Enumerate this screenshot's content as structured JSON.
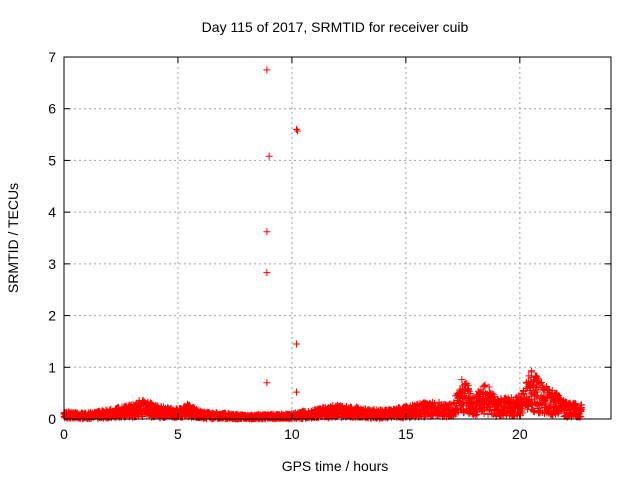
{
  "chart_data": {
    "type": "scatter",
    "title": "Day 115 of 2017, SRMTID for receiver cuib",
    "xlabel": "GPS time / hours",
    "ylabel": "SRMTID / TECUs",
    "xlim": [
      0,
      24
    ],
    "ylim": [
      0,
      7
    ],
    "xticks": [
      "0",
      "5",
      "10",
      "15",
      "20"
    ],
    "yticks": [
      "0",
      "1",
      "2",
      "3",
      "4",
      "5",
      "6",
      "7"
    ],
    "grid": true,
    "marker": "plus",
    "color": "#ff0000",
    "outliers": [
      {
        "x": 8.9,
        "y": 6.75
      },
      {
        "x": 10.2,
        "y": 5.6
      },
      {
        "x": 10.25,
        "y": 5.57
      },
      {
        "x": 9.0,
        "y": 5.08
      },
      {
        "x": 8.9,
        "y": 3.62
      },
      {
        "x": 8.9,
        "y": 2.83
      },
      {
        "x": 10.2,
        "y": 1.45
      },
      {
        "x": 8.9,
        "y": 0.7
      },
      {
        "x": 10.2,
        "y": 0.52
      }
    ],
    "baseline_envelope": [
      {
        "x": 0,
        "y": 0.15
      },
      {
        "x": 1,
        "y": 0.12
      },
      {
        "x": 2,
        "y": 0.2
      },
      {
        "x": 3,
        "y": 0.3
      },
      {
        "x": 3.5,
        "y": 0.42
      },
      {
        "x": 4,
        "y": 0.28
      },
      {
        "x": 5,
        "y": 0.22
      },
      {
        "x": 5.5,
        "y": 0.3
      },
      {
        "x": 6,
        "y": 0.15
      },
      {
        "x": 7,
        "y": 0.12
      },
      {
        "x": 8,
        "y": 0.08
      },
      {
        "x": 9,
        "y": 0.1
      },
      {
        "x": 10,
        "y": 0.12
      },
      {
        "x": 11,
        "y": 0.2
      },
      {
        "x": 12,
        "y": 0.28
      },
      {
        "x": 13,
        "y": 0.22
      },
      {
        "x": 14,
        "y": 0.18
      },
      {
        "x": 15,
        "y": 0.25
      },
      {
        "x": 16,
        "y": 0.35
      },
      {
        "x": 17,
        "y": 0.3
      },
      {
        "x": 17.5,
        "y": 0.85
      },
      {
        "x": 18,
        "y": 0.45
      },
      {
        "x": 18.5,
        "y": 0.75
      },
      {
        "x": 19,
        "y": 0.4
      },
      {
        "x": 20,
        "y": 0.45
      },
      {
        "x": 20.5,
        "y": 0.95
      },
      {
        "x": 21,
        "y": 0.7
      },
      {
        "x": 21.5,
        "y": 0.55
      },
      {
        "x": 22,
        "y": 0.35
      },
      {
        "x": 22.7,
        "y": 0.3
      }
    ]
  }
}
